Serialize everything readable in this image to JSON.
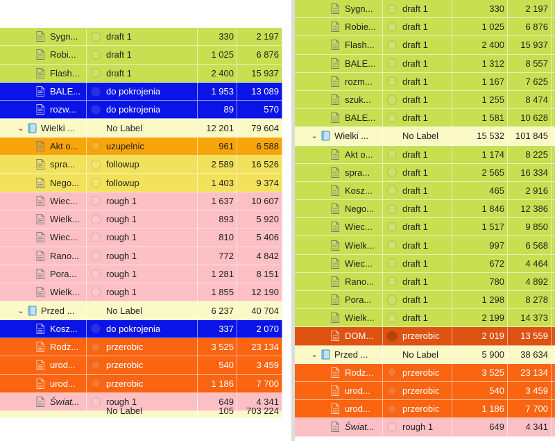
{
  "colors": {
    "green": "#c8df52",
    "blue": "#0a14e6",
    "pale_yellow": "#fbf9c6",
    "orange": "#f7a50a",
    "yellow": "#f2e15b",
    "pink": "#fcc0c4",
    "red": "#fb6410"
  },
  "left_rows": [
    {
      "type": "file",
      "name": "Sygn...",
      "label": "draft 1",
      "n1": "330",
      "n2": "2 197",
      "color": "green"
    },
    {
      "type": "file",
      "name": "Robi...",
      "label": "draft 1",
      "n1": "1 025",
      "n2": "6 876",
      "color": "green"
    },
    {
      "type": "file",
      "name": "Flash...",
      "label": "draft 1",
      "n1": "2 400",
      "n2": "15 937",
      "color": "green"
    },
    {
      "type": "file",
      "name": "BALE...",
      "label": "do pokrojenia",
      "n1": "1 953",
      "n2": "13 089",
      "color": "blue"
    },
    {
      "type": "file",
      "name": "rozw...",
      "label": "do pokrojenia",
      "n1": "89",
      "n2": "570",
      "color": "blue"
    },
    {
      "type": "folder",
      "name": "Wielki ...",
      "label": "No Label",
      "n1": "12 201",
      "n2": "79 604",
      "color": "yellowpale"
    },
    {
      "type": "file",
      "name": "Akt o...",
      "label": "uzupelnic",
      "n1": "961",
      "n2": "6 588",
      "color": "orange"
    },
    {
      "type": "file",
      "name": "spra...",
      "label": "followup",
      "n1": "2 589",
      "n2": "16 526",
      "color": "yellow"
    },
    {
      "type": "file",
      "name": "Nego...",
      "label": "followup",
      "n1": "1 403",
      "n2": "9 374",
      "color": "yellow"
    },
    {
      "type": "file",
      "name": "Wiec...",
      "label": "rough 1",
      "n1": "1 637",
      "n2": "10 607",
      "color": "pink"
    },
    {
      "type": "file",
      "name": "Wielk...",
      "label": "rough 1",
      "n1": "893",
      "n2": "5 920",
      "color": "pink"
    },
    {
      "type": "file",
      "name": "Wiec...",
      "label": "rough 1",
      "n1": "810",
      "n2": "5 406",
      "color": "pink"
    },
    {
      "type": "file",
      "name": "Rano...",
      "label": "rough 1",
      "n1": "772",
      "n2": "4 842",
      "color": "pink"
    },
    {
      "type": "file",
      "name": "Pora...",
      "label": "rough 1",
      "n1": "1 281",
      "n2": "8 151",
      "color": "pink"
    },
    {
      "type": "file",
      "name": "Wielk...",
      "label": "rough 1",
      "n1": "1 855",
      "n2": "12 190",
      "color": "pink"
    },
    {
      "type": "folder",
      "name": "Przed ...",
      "label": "No Label",
      "n1": "6 237",
      "n2": "40 704",
      "color": "yellowpale"
    },
    {
      "type": "file",
      "name": "Kosz...",
      "label": "do pokrojenia",
      "n1": "337",
      "n2": "2 070",
      "color": "blue"
    },
    {
      "type": "file",
      "name": "Rodz...",
      "label": "przerobic",
      "n1": "3 525",
      "n2": "23 134",
      "color": "red"
    },
    {
      "type": "file",
      "name": "urod...",
      "label": "przerobic",
      "n1": "540",
      "n2": "3 459",
      "color": "red"
    },
    {
      "type": "file",
      "name": "urod...",
      "label": "przerobic",
      "n1": "1 186",
      "n2": "7 700",
      "color": "red"
    },
    {
      "type": "file",
      "name": "Świat...",
      "label": "rough 1",
      "n1": "649",
      "n2": "4 341",
      "color": "pink",
      "italic": true
    }
  ],
  "left_partial_row": {
    "label": "No Label",
    "n1": "105",
    "n2": "703 224"
  },
  "right_rows": [
    {
      "type": "file",
      "name": "Sygn...",
      "label": "draft 1",
      "n1": "330",
      "n2": "2 197",
      "color": "green"
    },
    {
      "type": "file",
      "name": "Robie...",
      "label": "draft 1",
      "n1": "1 025",
      "n2": "6 876",
      "color": "green"
    },
    {
      "type": "file",
      "name": "Flash...",
      "label": "draft 1",
      "n1": "2 400",
      "n2": "15 937",
      "color": "green"
    },
    {
      "type": "file",
      "name": "BALE...",
      "label": "draft 1",
      "n1": "1 312",
      "n2": "8 557",
      "color": "green"
    },
    {
      "type": "file",
      "name": "rozm...",
      "label": "draft 1",
      "n1": "1 167",
      "n2": "7 625",
      "color": "green"
    },
    {
      "type": "file",
      "name": "szuk...",
      "label": "draft 1",
      "n1": "1 255",
      "n2": "8 474",
      "color": "green"
    },
    {
      "type": "file",
      "name": "BALE...",
      "label": "draft 1",
      "n1": "1 581",
      "n2": "10 628",
      "color": "green"
    },
    {
      "type": "folder",
      "name": "Wielki ...",
      "label": "No Label",
      "n1": "15 532",
      "n2": "101 845",
      "color": "yellowpale"
    },
    {
      "type": "file",
      "name": "Akt o...",
      "label": "draft 1",
      "n1": "1 174",
      "n2": "8 225",
      "color": "green"
    },
    {
      "type": "file",
      "name": "spra...",
      "label": "draft 1",
      "n1": "2 565",
      "n2": "16 334",
      "color": "green"
    },
    {
      "type": "file",
      "name": "Kosz...",
      "label": "draft 1",
      "n1": "465",
      "n2": "2 916",
      "color": "green"
    },
    {
      "type": "file",
      "name": "Nego...",
      "label": "draft 1",
      "n1": "1 846",
      "n2": "12 386",
      "color": "green"
    },
    {
      "type": "file",
      "name": "Wiec...",
      "label": "draft 1",
      "n1": "1 517",
      "n2": "9 850",
      "color": "green"
    },
    {
      "type": "file",
      "name": "Wielk...",
      "label": "draft 1",
      "n1": "997",
      "n2": "6 568",
      "color": "green"
    },
    {
      "type": "file",
      "name": "Wiec...",
      "label": "draft 1",
      "n1": "672",
      "n2": "4 464",
      "color": "green"
    },
    {
      "type": "file",
      "name": "Rano...",
      "label": "draft 1",
      "n1": "780",
      "n2": "4 892",
      "color": "green"
    },
    {
      "type": "file",
      "name": "Pora...",
      "label": "draft 1",
      "n1": "1 298",
      "n2": "8 278",
      "color": "green"
    },
    {
      "type": "file",
      "name": "Wielk...",
      "label": "draft 1",
      "n1": "2 199",
      "n2": "14 373",
      "color": "green"
    },
    {
      "type": "file",
      "name": "DOM...",
      "label": "przerobic",
      "n1": "2 019",
      "n2": "13 559",
      "color": "redsel",
      "dot": true
    },
    {
      "type": "folder",
      "name": "Przed ...",
      "label": "No Label",
      "n1": "5 900",
      "n2": "38 634",
      "color": "yellowpale"
    },
    {
      "type": "file",
      "name": "Rodz...",
      "label": "przerobic",
      "n1": "3 525",
      "n2": "23 134",
      "color": "red"
    },
    {
      "type": "file",
      "name": "urod...",
      "label": "przerobic",
      "n1": "540",
      "n2": "3 459",
      "color": "red"
    },
    {
      "type": "file",
      "name": "urod...",
      "label": "przerobic",
      "n1": "1 186",
      "n2": "7 700",
      "color": "red"
    },
    {
      "type": "file",
      "name": "Świat...",
      "label": "rough 1",
      "n1": "649",
      "n2": "4 341",
      "color": "pink",
      "italic": true
    }
  ]
}
